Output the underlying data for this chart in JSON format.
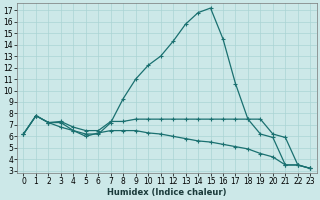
{
  "xlabel": "Humidex (Indice chaleur)",
  "background_color": "#cce8e8",
  "grid_color": "#aad4d4",
  "line_color": "#1a7070",
  "xlim": [
    -0.5,
    23.5
  ],
  "ylim": [
    2.8,
    17.6
  ],
  "xticks": [
    0,
    1,
    2,
    3,
    4,
    5,
    6,
    7,
    8,
    9,
    10,
    11,
    12,
    13,
    14,
    15,
    16,
    17,
    18,
    19,
    20,
    21,
    22,
    23
  ],
  "yticks": [
    3,
    4,
    5,
    6,
    7,
    8,
    9,
    10,
    11,
    12,
    13,
    14,
    15,
    16,
    17
  ],
  "line1_x": [
    0,
    1,
    2,
    3,
    4,
    5,
    6,
    7,
    8,
    9,
    10,
    11,
    12,
    13,
    14,
    15,
    16,
    17,
    18,
    19,
    20,
    21,
    22,
    23
  ],
  "line1_y": [
    6.2,
    7.8,
    7.2,
    7.2,
    6.5,
    6.2,
    6.2,
    7.2,
    9.3,
    11.0,
    12.2,
    13.0,
    14.3,
    15.8,
    16.8,
    17.2,
    14.5,
    10.6,
    7.5,
    6.2,
    5.9,
    3.5,
    3.5,
    3.2
  ],
  "line2_x": [
    0,
    1,
    2,
    3,
    4,
    5,
    6,
    7,
    8,
    9,
    10,
    11,
    12,
    13,
    14,
    15,
    16,
    17,
    18,
    19,
    20,
    21,
    22,
    23
  ],
  "line2_y": [
    6.2,
    7.8,
    7.2,
    7.3,
    6.8,
    6.5,
    6.5,
    7.3,
    7.3,
    7.5,
    7.5,
    7.5,
    7.5,
    7.5,
    7.5,
    7.5,
    7.5,
    7.5,
    7.5,
    7.5,
    6.2,
    5.9,
    3.5,
    3.2
  ],
  "line3_x": [
    0,
    1,
    2,
    3,
    4,
    5,
    6,
    7,
    8,
    9,
    10,
    11,
    12,
    13,
    14,
    15,
    16,
    17,
    18,
    19,
    20,
    21,
    22,
    23
  ],
  "line3_y": [
    6.2,
    7.8,
    7.2,
    6.8,
    6.5,
    6.0,
    6.3,
    6.5,
    6.5,
    6.5,
    6.3,
    6.2,
    6.0,
    5.8,
    5.6,
    5.5,
    5.3,
    5.1,
    4.9,
    4.5,
    4.2,
    3.5,
    3.5,
    3.2
  ],
  "xlabel_fontsize": 6.0,
  "tick_fontsize": 5.5,
  "linewidth": 0.9,
  "markersize": 3.0
}
